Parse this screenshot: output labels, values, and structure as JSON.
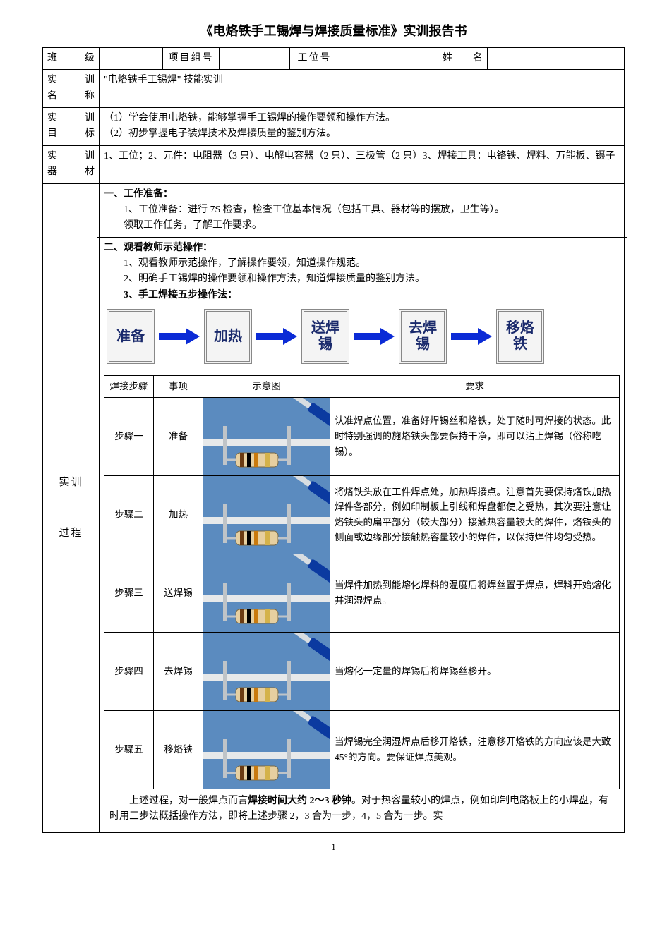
{
  "title": "《电烙铁手工锡焊与焊接质量标准》实训报告书",
  "header": {
    "class_label": "班　级",
    "group_label": "项目组号",
    "station_label": "工位号",
    "name_label": "姓　名",
    "class_value": "",
    "group_value": "",
    "station_value": "",
    "name_value": ""
  },
  "rows": {
    "name_label": "实　训\n名　称",
    "name_value": "\"电烙铁手工锡焊\" 技能实训",
    "goal_label": "实　训\n目　标",
    "goal_value1": "（1）学会使用电烙铁，能够掌握手工锡焊的操作要领和操作方法。",
    "goal_value2": "（2）初步掌握电子装焊技术及焊接质量的鉴别方法。",
    "equip_label": "实　训\n器　材",
    "equip_value": "1、工位；2、元件：电阻器（3 只）、电解电容器（2 只）、三极管（2 只）3、焊接工具：电铬铁、焊料、万能板、镊子",
    "proc_label": "实训\n\n\n过程"
  },
  "proc": {
    "sec1_title": "一、工作准备：",
    "sec1_l1": "1、工位准备：进行 7S 检查，检查工位基本情况（包括工具、器材等的摆放，卫生等）。",
    "sec1_l2": "领取工作任务，了解工作要求。",
    "sec2_title": "二、观看教师示范操作：",
    "sec2_l1": "1、观看教师示范操作，了解操作要领，知道操作规范。",
    "sec2_l2": "2、明确手工锡焊的操作要领和操作方法，知道焊接质量的鉴别方法。",
    "sec2_l3": "3、手工焊接五步操作法：",
    "flow": {
      "b1": "准备",
      "b2": "加热",
      "b3": "送焊锡",
      "b4": "去焊锡",
      "b5": "移烙铁",
      "arrow_color": "#0b2bd6",
      "box_border": "#888888",
      "box_bg": "#f4f4f4"
    },
    "steps_header": {
      "c1": "焊接步骤",
      "c2": "事项",
      "c3": "示意图",
      "c4": "要求"
    },
    "steps": [
      {
        "n": "步骤一",
        "t": "准备",
        "req": "认准焊点位置，准备好焊锡丝和烙铁，处于随时可焊接的状态。此时特别强调的施烙铁头部要保持干净，即可以沾上焊锡（俗称吃锡）。"
      },
      {
        "n": "步骤二",
        "t": "加热",
        "req": "将烙铁头放在工件焊点处，加热焊接点。注意首先要保持烙铁加热焊件各部分，例如印制板上引线和焊盘都使之受热，其次要注意让烙铁头的扁平部分（较大部分）接触热容量较大的焊件，烙铁头的侧面或边缘部分接触热容量较小的焊件，以保持焊件均匀受热。"
      },
      {
        "n": "步骤三",
        "t": "送焊锡",
        "req": "当焊件加热到能熔化焊料的温度后将焊丝置于焊点，焊料开始熔化并润湿焊点。"
      },
      {
        "n": "步骤四",
        "t": "去焊锡",
        "req": "当熔化一定量的焊锡后将焊锡丝移开。"
      },
      {
        "n": "步骤五",
        "t": "移烙铁",
        "req": "当焊锡完全润湿焊点后移开烙铁，注意移开烙铁的方向应该是大致 45°的方向。要保证焊点美观。"
      }
    ],
    "illus_colors": {
      "bg": "#5b8bbf",
      "board": "#e7e9ea",
      "lead": "#bfc4c8",
      "iron_handle": "#0b3aa0",
      "iron_shaft": "#d8dde1",
      "iron_tip": "#6f7579",
      "resistor_body": "#e6cfa0",
      "resistor_bands": [
        "#6b3b12",
        "#000000",
        "#c97a0e",
        "#d4b24a"
      ]
    },
    "footer": "上述过程，对一般焊点而言焊接时间大约 2～3 秒钟。对于热容量较小的焊点，例如印制电路板上的小焊盘，有时用三步法概括操作方法，即将上述步骤 2，3 合为一步，4，5 合为一步。实"
  },
  "page_number": "1"
}
